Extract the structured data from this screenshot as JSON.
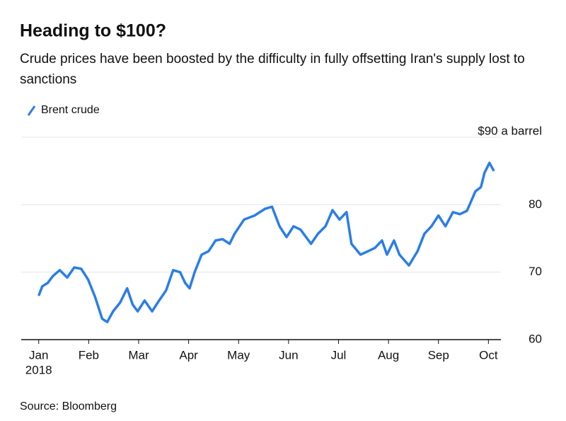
{
  "chart_data": {
    "type": "line",
    "title": "Heading to $100?",
    "subtitle": "Crude prices have been boosted by the difficulty in fully offsetting Iran's supply lost to sanctions",
    "source": "Source: Bloomberg",
    "x_sublabel": "2018",
    "x": [
      0,
      0.07,
      0.18,
      0.28,
      0.42,
      0.57,
      0.71,
      0.85,
      0.99,
      1.13,
      1.27,
      1.37,
      1.49,
      1.63,
      1.77,
      1.88,
      1.98,
      2.12,
      2.27,
      2.41,
      2.55,
      2.69,
      2.83,
      2.93,
      3.02,
      3.12,
      3.26,
      3.4,
      3.54,
      3.68,
      3.82,
      3.92,
      4.11,
      4.32,
      4.53,
      4.67,
      4.82,
      4.96,
      5.1,
      5.24,
      5.45,
      5.59,
      5.74,
      5.88,
      6.02,
      6.16,
      6.26,
      6.44,
      6.59,
      6.73,
      6.87,
      6.97,
      7.11,
      7.22,
      7.41,
      7.58,
      7.72,
      7.86,
      8.0,
      8.14,
      8.29,
      8.43,
      8.57,
      8.74,
      8.85,
      8.92,
      9.02,
      9.11
    ],
    "series": [
      {
        "name": "Brent crude",
        "color": "#2b7de9",
        "values": [
          66.5,
          67.9,
          68.4,
          69.4,
          70.3,
          69.2,
          70.7,
          70.5,
          68.9,
          66.3,
          63.1,
          62.6,
          64.2,
          65.5,
          67.6,
          65.2,
          64.2,
          65.8,
          64.2,
          65.8,
          67.3,
          70.3,
          70,
          68.4,
          67.6,
          70,
          72.6,
          73.1,
          74.7,
          74.9,
          74.2,
          75.7,
          77.8,
          78.4,
          79.4,
          79.7,
          76.8,
          75.2,
          76.8,
          76.3,
          74.2,
          75.7,
          76.8,
          79.2,
          77.8,
          78.9,
          74.2,
          72.6,
          73.1,
          73.6,
          74.7,
          72.6,
          74.7,
          72.6,
          71,
          73.1,
          75.7,
          76.8,
          78.4,
          76.8,
          78.9,
          78.6,
          79.1,
          82,
          82.6,
          84.7,
          86.2,
          85
        ]
      }
    ],
    "xlim": [
      -0.35,
      9.25
    ],
    "xticks": [
      {
        "value": 0,
        "label": "Jan"
      },
      {
        "value": 1,
        "label": "Feb"
      },
      {
        "value": 2,
        "label": "Mar"
      },
      {
        "value": 3,
        "label": "Apr"
      },
      {
        "value": 4,
        "label": "May"
      },
      {
        "value": 5,
        "label": "Jun"
      },
      {
        "value": 6,
        "label": "Jul"
      },
      {
        "value": 7,
        "label": "Aug"
      },
      {
        "value": 8,
        "label": "Sep"
      },
      {
        "value": 9,
        "label": "Oct"
      }
    ],
    "ylim": [
      60,
      90
    ],
    "yticks": [
      60,
      70,
      80,
      {
        "value": 90,
        "label": "$90 a barrel"
      }
    ],
    "grid": true
  }
}
